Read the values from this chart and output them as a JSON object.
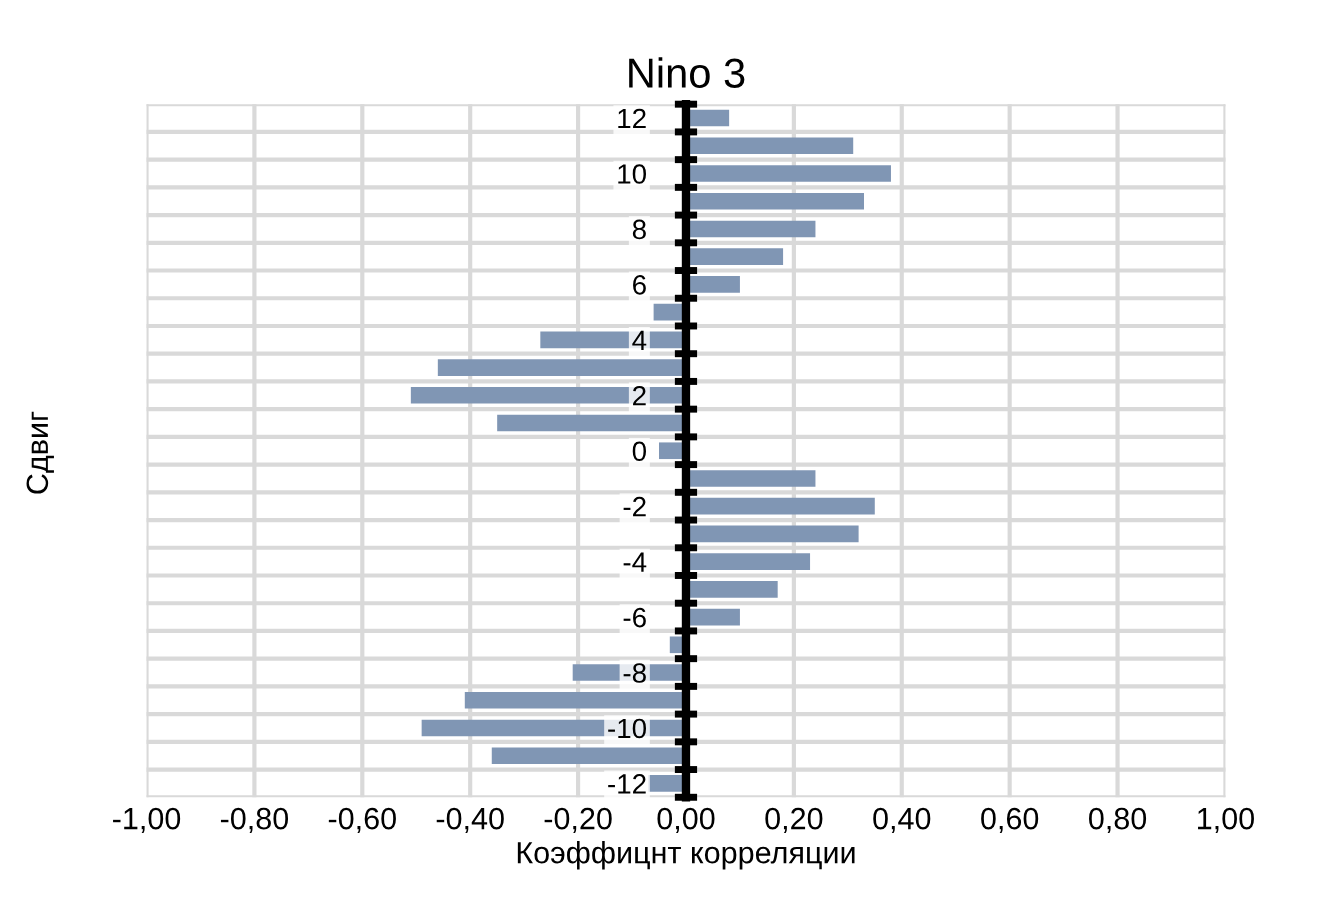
{
  "chart_data": {
    "type": "bar",
    "orientation": "horizontal",
    "title": "Nino 3",
    "xlabel": "Коэффицнт корреляции",
    "ylabel": "Сдвиг",
    "categories": [
      "12",
      null,
      "10",
      null,
      "8",
      null,
      "6",
      null,
      "4",
      null,
      "2",
      null,
      "0",
      null,
      "-2",
      null,
      "-4",
      null,
      "-6",
      null,
      "-8",
      null,
      "-10",
      null,
      "-12"
    ],
    "values": [
      0.08,
      0.31,
      0.38,
      0.33,
      0.24,
      0.18,
      0.1,
      -0.06,
      -0.27,
      -0.46,
      -0.51,
      -0.35,
      -0.05,
      0.24,
      0.35,
      0.32,
      0.23,
      0.17,
      0.1,
      -0.03,
      -0.21,
      -0.41,
      -0.49,
      -0.36,
      -0.07
    ],
    "color": "#8096b4",
    "xlim": [
      -1,
      1
    ],
    "xticks": [
      {
        "value": -1,
        "label": "-1,00"
      },
      {
        "value": -0.8,
        "label": "-0,80"
      },
      {
        "value": -0.6,
        "label": "-0,60"
      },
      {
        "value": -0.4,
        "label": "-0,40"
      },
      {
        "value": -0.2,
        "label": "-0,20"
      },
      {
        "value": 0,
        "label": "0,00"
      },
      {
        "value": 0.2,
        "label": "0,20"
      },
      {
        "value": 0.4,
        "label": "0,40"
      },
      {
        "value": 0.6,
        "label": "0,60"
      },
      {
        "value": 0.8,
        "label": "0,80"
      },
      {
        "value": 1,
        "label": "1,00"
      }
    ],
    "grid": true
  }
}
